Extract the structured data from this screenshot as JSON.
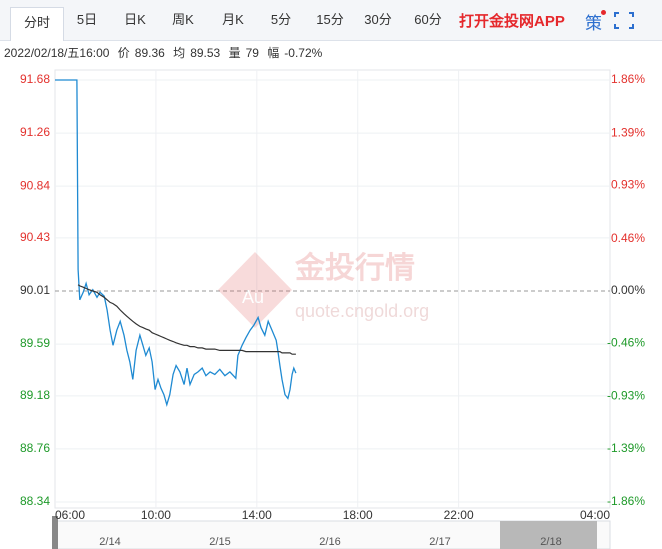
{
  "toolbar": {
    "tabs": [
      "分时",
      "5日",
      "日K",
      "周K",
      "月K",
      "5分",
      "15分",
      "30分",
      "60分"
    ],
    "app_link": "打开金投网APP",
    "strategy": "策"
  },
  "info": {
    "time": "2022/02/18/五16:00",
    "price_label": "价",
    "price": 89.36,
    "avg_label": "均",
    "avg": 89.53,
    "volume_label": "量",
    "volume": 79,
    "change_label": "幅",
    "change": "-0.72%"
  },
  "watermark": {
    "logo": "Au",
    "title": "金投行情",
    "url": "quote.cngold.org"
  },
  "navigator": {
    "dates": [
      "2/14",
      "2/15",
      "2/16",
      "2/17",
      "2/18"
    ]
  },
  "chart_data": {
    "type": "line",
    "x": [
      0,
      52,
      55,
      59,
      67,
      74,
      81,
      90,
      100,
      107,
      117,
      124,
      131,
      138,
      147,
      155,
      164,
      171,
      178,
      185,
      193,
      202,
      209,
      216,
      224,
      231,
      238,
      245,
      252,
      259,
      266,
      273,
      281,
      288,
      297,
      307,
      314,
      321,
      331,
      340,
      350,
      359,
      369,
      380,
      392,
      404,
      416,
      430,
      435,
      445,
      454,
      464,
      473,
      483,
      490,
      499,
      507,
      516,
      526,
      530,
      535,
      540,
      547,
      554,
      559,
      564,
      568,
      573
    ],
    "series": [
      {
        "color": "#1f8ad2",
        "values": [
          91.68,
          91.68,
          90.18,
          89.94,
          90.0,
          90.07,
          89.98,
          90.02,
          89.96,
          90.0,
          89.97,
          89.86,
          89.7,
          89.58,
          89.7,
          89.77,
          89.66,
          89.54,
          89.45,
          89.31,
          89.54,
          89.66,
          89.58,
          89.5,
          89.56,
          89.45,
          89.23,
          89.31,
          89.24,
          89.19,
          89.11,
          89.19,
          89.35,
          89.42,
          89.37,
          89.27,
          89.4,
          89.27,
          89.35,
          89.37,
          89.4,
          89.34,
          89.37,
          89.35,
          89.39,
          89.34,
          89.37,
          89.32,
          89.5,
          89.58,
          89.64,
          89.7,
          89.74,
          89.8,
          89.72,
          89.66,
          89.77,
          89.7,
          89.62,
          89.54,
          89.42,
          89.31,
          89.19,
          89.16,
          89.23,
          89.35,
          89.4,
          89.36
        ]
      },
      {
        "color": "#333333",
        "values": [
          null,
          null,
          90.06,
          90.05,
          90.04,
          90.03,
          90.02,
          90.01,
          90.0,
          89.98,
          89.96,
          89.94,
          89.92,
          89.91,
          89.89,
          89.86,
          89.83,
          89.81,
          89.79,
          89.77,
          89.75,
          89.73,
          89.72,
          89.71,
          89.7,
          89.68,
          89.67,
          89.66,
          89.65,
          89.64,
          89.63,
          89.62,
          89.61,
          89.6,
          89.59,
          89.58,
          89.58,
          89.57,
          89.57,
          89.56,
          89.56,
          89.55,
          89.55,
          89.55,
          89.54,
          89.54,
          89.54,
          89.54,
          89.54,
          89.54,
          89.53,
          89.53,
          89.53,
          89.53,
          89.53,
          89.53,
          89.53,
          89.53,
          89.53,
          89.53,
          89.53,
          89.52,
          89.52,
          89.52,
          89.52,
          89.51,
          89.51,
          89.51
        ]
      }
    ],
    "xlim": [
      0,
      1320
    ],
    "xticks": [
      {
        "value": 0,
        "label": "06:00"
      },
      {
        "value": 240,
        "label": "10:00"
      },
      {
        "value": 480,
        "label": "14:00"
      },
      {
        "value": 720,
        "label": "18:00"
      },
      {
        "value": 960,
        "label": "22:00"
      },
      {
        "value": 1320,
        "label": "04:00"
      }
    ],
    "ylim": [
      88.34,
      91.68
    ],
    "yticks": [
      91.68,
      91.26,
      90.84,
      90.43,
      90.01,
      89.59,
      89.18,
      88.76,
      88.34
    ],
    "y2lim": [
      -1.86,
      1.86
    ],
    "y2ticks": [
      {
        "value": 1.86,
        "label": "1.86%"
      },
      {
        "value": 1.39,
        "label": "1.39%"
      },
      {
        "value": 0.93,
        "label": "0.93%"
      },
      {
        "value": 0.46,
        "label": "0.46%"
      },
      {
        "value": 0.0,
        "label": "0.00%"
      },
      {
        "value": -0.46,
        "label": "-0.46%"
      },
      {
        "value": -0.93,
        "label": "-0.93%"
      },
      {
        "value": -1.39,
        "label": "-1.39%"
      },
      {
        "value": -1.86,
        "label": "-1.86%"
      }
    ],
    "baseline": 90.01,
    "grid": true,
    "up_color": "#e3312d",
    "down_color": "#1f9a2a",
    "flat_color": "#333333"
  }
}
